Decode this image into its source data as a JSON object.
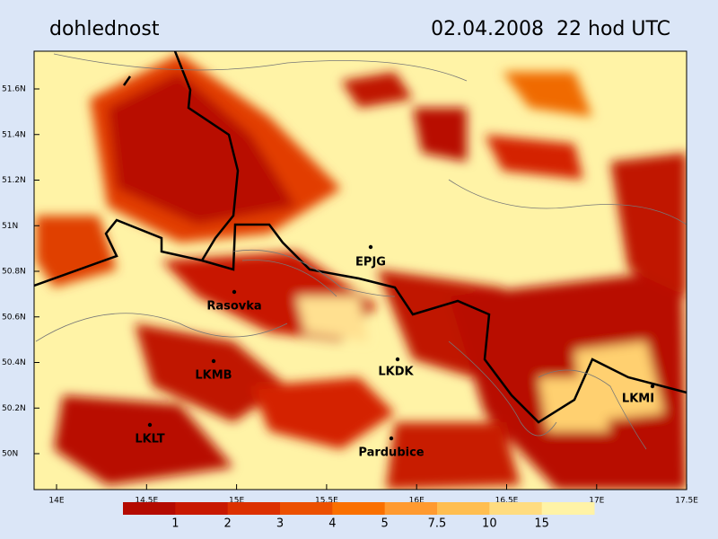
{
  "header": {
    "title": "dohlednost",
    "timestamp": "02.04.2008  22 hod UTC"
  },
  "axes": {
    "latitude_labels": [
      "51.6N",
      "51.4N",
      "51.2N",
      "51N",
      "50.8N",
      "50.6N",
      "50.4N",
      "50.2N",
      "50N"
    ],
    "longitude_labels": [
      "14E",
      "14.5E",
      "15E",
      "15.5E",
      "16E",
      "16.5E",
      "17E",
      "17.5E"
    ]
  },
  "stations": [
    "EPJG",
    "Rasovka",
    "LKMB",
    "LKDK",
    "LKLT",
    "Pardubice",
    "LKMI"
  ],
  "legend": {
    "labels": [
      "1",
      "2",
      "3",
      "4",
      "5",
      "7.5",
      "10",
      "15"
    ],
    "colors": [
      "#b40a00",
      "#c81800",
      "#dc3000",
      "#ec5000",
      "#fa7000",
      "#ff9a30",
      "#ffbe50",
      "#ffdc80",
      "#fff3a6"
    ]
  }
}
